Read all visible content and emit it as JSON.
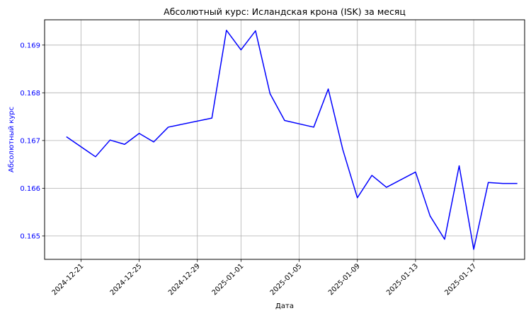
{
  "chart_data": {
    "type": "line",
    "title": "Абсолютный курс: Исландская крона (ISK) за месяц",
    "xlabel": "Дата",
    "ylabel": "Абсолютный курс",
    "ylim": [
      0.16451,
      0.16953
    ],
    "xlim": [
      "2024-12-19",
      "2025-01-20"
    ],
    "grid": true,
    "colors": {
      "line": "#0000ff",
      "ylabel": "#0000ff",
      "ytick": "#0000ff",
      "grid": "#b0b0b0"
    },
    "x_ticks": [
      "2024-12-21",
      "2024-12-25",
      "2024-12-29",
      "2025-01-01",
      "2025-01-05",
      "2025-01-09",
      "2025-01-13",
      "2025-01-17"
    ],
    "y_ticks": [
      "0.165",
      "0.166",
      "0.167",
      "0.168",
      "0.169"
    ],
    "series": [
      {
        "x": [
          "2024-12-20",
          "2024-12-22",
          "2024-12-23",
          "2024-12-24",
          "2024-12-25",
          "2024-12-26",
          "2024-12-27",
          "2024-12-30",
          "2024-12-31",
          "2025-01-01",
          "2025-01-02",
          "2025-01-03",
          "2025-01-04",
          "2025-01-06",
          "2025-01-07",
          "2025-01-08",
          "2025-01-09",
          "2025-01-10",
          "2025-01-11",
          "2025-01-13",
          "2025-01-14",
          "2025-01-15",
          "2025-01-16",
          "2025-01-17",
          "2025-01-18",
          "2025-01-19",
          "2025-01-20"
        ],
        "values": [
          0.16708,
          0.16666,
          0.16701,
          0.16692,
          0.16715,
          0.16697,
          0.16728,
          0.16747,
          0.16931,
          0.1689,
          0.1693,
          0.16798,
          0.16742,
          0.16728,
          0.16808,
          0.16681,
          0.1658,
          0.16627,
          0.16602,
          0.16634,
          0.16542,
          0.16493,
          0.16647,
          0.16472,
          0.16612,
          0.1661,
          0.1661
        ]
      }
    ]
  }
}
